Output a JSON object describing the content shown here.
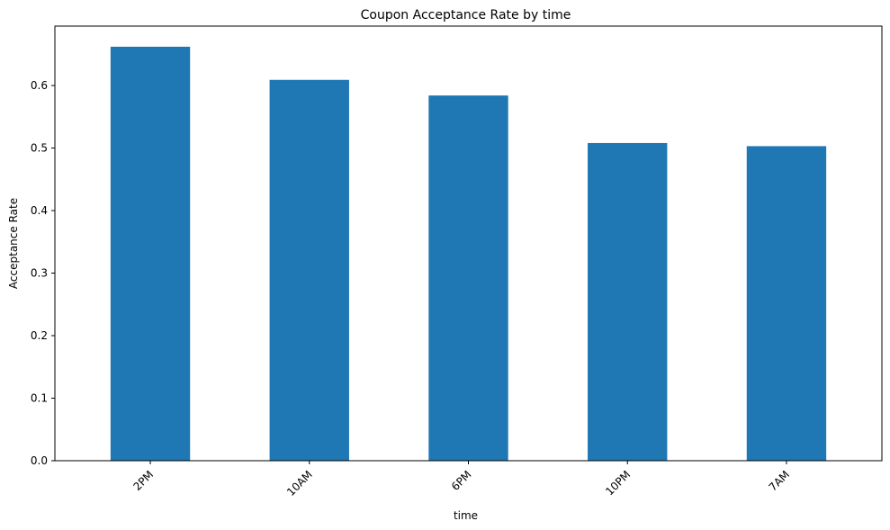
{
  "chart_data": {
    "type": "bar",
    "title": "Coupon Acceptance Rate by time",
    "xlabel": "time",
    "ylabel": "Acceptance Rate",
    "categories": [
      "2PM",
      "10AM",
      "6PM",
      "10PM",
      "7AM"
    ],
    "values": [
      0.662,
      0.609,
      0.584,
      0.508,
      0.503
    ],
    "ylim": [
      0,
      0.695
    ],
    "yticks": [
      "0.0",
      "0.1",
      "0.2",
      "0.3",
      "0.4",
      "0.5",
      "0.6"
    ],
    "bar_color": "#1f77b4",
    "grid": false,
    "legend": "none"
  }
}
